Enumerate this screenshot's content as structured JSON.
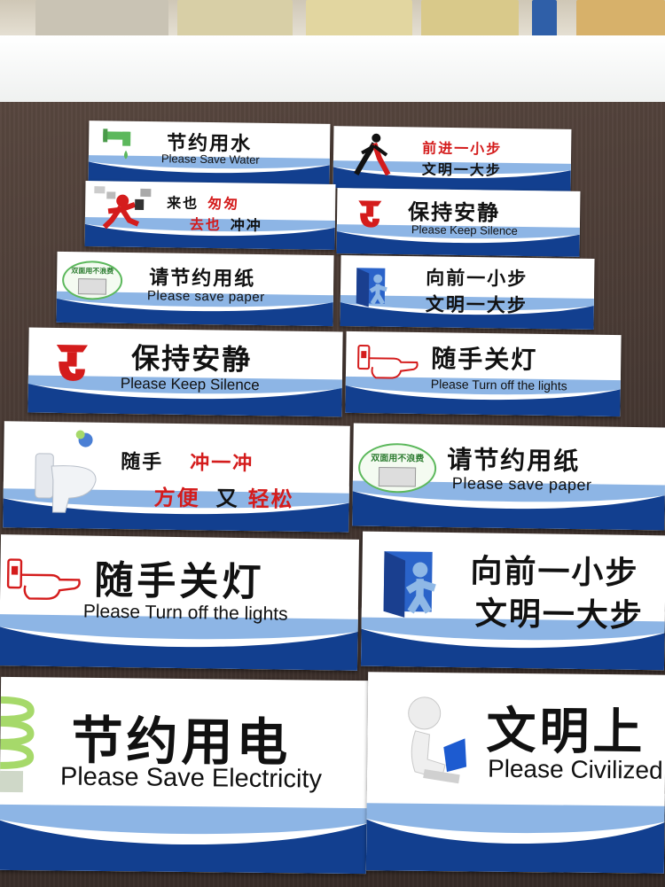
{
  "signs": {
    "save_water": {
      "cn": "节约用水",
      "en": "Please Save Water"
    },
    "step_forward_1": {
      "cn_line1": "前进一小步",
      "cn_line2": "文明一大步"
    },
    "come_and_go": {
      "line1_black": "来也",
      "line1_red": "匆匆",
      "line2_red": "去也",
      "line2_black": "冲冲"
    },
    "keep_silence_1": {
      "cn": "保持安静",
      "en": "Please Keep Silence"
    },
    "save_paper_1": {
      "cn": "请节约用纸",
      "en": "Please save paper",
      "badge": "双面用不浪费"
    },
    "step_forward_2": {
      "cn_line1": "向前一小步",
      "cn_line2": "文明一大步"
    },
    "keep_silence_2": {
      "cn": "保持安静",
      "en": "Please Keep Silence"
    },
    "lights_off_1": {
      "cn": "随手关灯",
      "en": "Please Turn off the lights"
    },
    "flush": {
      "line1_black": "随手",
      "line1_red": "冲一冲",
      "line2_red_a": "方便",
      "line2_black": "又",
      "line2_red_b": "轻松"
    },
    "save_paper_2": {
      "cn": "请节约用纸",
      "en": "Please save paper",
      "badge": "双面用不浪费"
    },
    "lights_off_2": {
      "cn": "随手关灯",
      "en": "Please Turn off the lights"
    },
    "step_forward_3": {
      "cn_line1": "向前一小步",
      "cn_line2": "文明一大步"
    },
    "save_electricity": {
      "cn": "节约用电",
      "en": "Please Save Electricity"
    },
    "civilized": {
      "cn": "文明上",
      "en": "Please Civilized"
    }
  },
  "colors": {
    "band_dark": "#123f8f",
    "band_light": "#2f78cf",
    "accent_red": "#d41c1c",
    "icon_green": "#5cb85c"
  }
}
